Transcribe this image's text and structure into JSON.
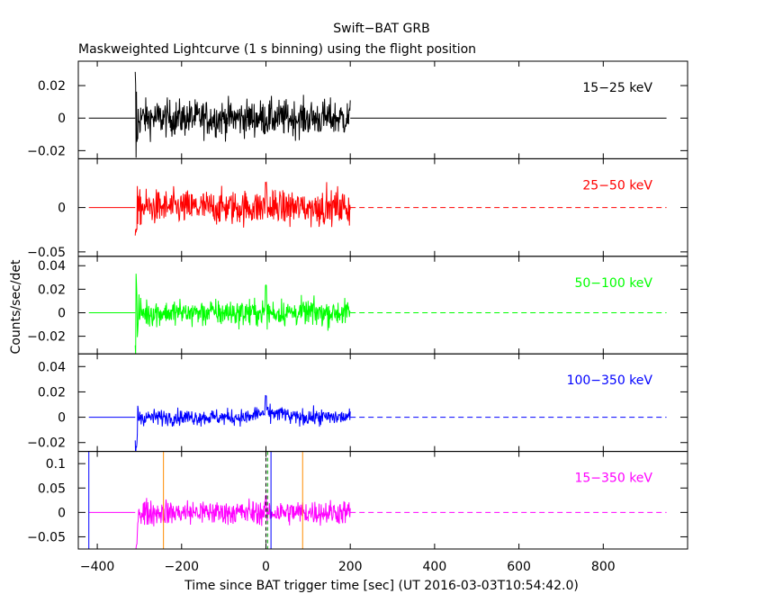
{
  "title": "Swift−BAT GRB",
  "subtitle": "Maskweighted Lightcurve (1 s binning) using the flight position",
  "xlabel": "Time since BAT trigger time [sec] (UT 2016-03-03T10:54:42.0)",
  "ylabel": "Counts/sec/det",
  "chart_data": {
    "type": "line",
    "title": "Swift−BAT GRB",
    "subtitle": "Maskweighted Lightcurve (1 s binning) using the flight position",
    "xlabel": "Time since BAT trigger time [sec] (UT 2016-03-03T10:54:42.0)",
    "ylabel": "Counts/sec/det",
    "xlim": [
      -445,
      1000
    ],
    "x_ticks": [
      -400,
      -200,
      0,
      200,
      400,
      600,
      800
    ],
    "x_tick_labels": [
      "−400",
      "−200",
      "0",
      "200",
      "400",
      "600",
      "800"
    ],
    "data_x_range": [
      -310,
      200
    ],
    "vertical_markers": [
      {
        "x": -420,
        "color": "#0000ff",
        "style": "solid"
      },
      {
        "x": -243,
        "color": "#ff8c00",
        "style": "solid"
      },
      {
        "x": 0,
        "color": "#000000",
        "style": "dashed"
      },
      {
        "x": 4,
        "color": "#00a000",
        "style": "dashed"
      },
      {
        "x": 12,
        "color": "#0000ff",
        "style": "solid"
      },
      {
        "x": 87,
        "color": "#ff8c00",
        "style": "solid"
      }
    ],
    "panels": [
      {
        "name": "15−25 keV",
        "color": "#000000",
        "ylim": [
          -0.025,
          0.035
        ],
        "ticks": [
          -0.02,
          0,
          0.02
        ],
        "tick_labels": [
          "−0.02",
          "0",
          "0.02"
        ],
        "noise": 0.008,
        "onset": 0.034,
        "spike": 0.0
      },
      {
        "name": "25−50 keV",
        "color": "#ff0000",
        "ylim": [
          -0.055,
          0.055
        ],
        "ticks": [
          -0.05,
          0
        ],
        "tick_labels": [
          "−0.05",
          "0"
        ],
        "noise": 0.014,
        "onset": 0.05,
        "spike": 0.03
      },
      {
        "name": "50−100 keV",
        "color": "#00ff00",
        "ylim": [
          -0.035,
          0.048
        ],
        "ticks": [
          -0.02,
          0,
          0.02,
          0.04
        ],
        "tick_labels": [
          "−0.02",
          "0",
          "0.02",
          "0.04"
        ],
        "noise": 0.008,
        "onset": 0.045,
        "spike": 0.025
      },
      {
        "name": "100−350 keV",
        "color": "#0000ff",
        "ylim": [
          -0.027,
          0.05
        ],
        "ticks": [
          -0.02,
          0,
          0.02,
          0.04
        ],
        "tick_labels": [
          "−0.02",
          "0",
          "0.02",
          "0.04"
        ],
        "noise": 0.0045,
        "onset": 0.035,
        "spike": 0.015
      },
      {
        "name": "15−350 keV",
        "color": "#ff00ff",
        "ylim": [
          -0.075,
          0.125
        ],
        "ticks": [
          -0.05,
          0,
          0.05,
          0.1
        ],
        "tick_labels": [
          "−0.05",
          "0",
          "0.05",
          "0.1"
        ],
        "noise": 0.018,
        "onset": 0.11,
        "spike": 0.035
      }
    ]
  }
}
